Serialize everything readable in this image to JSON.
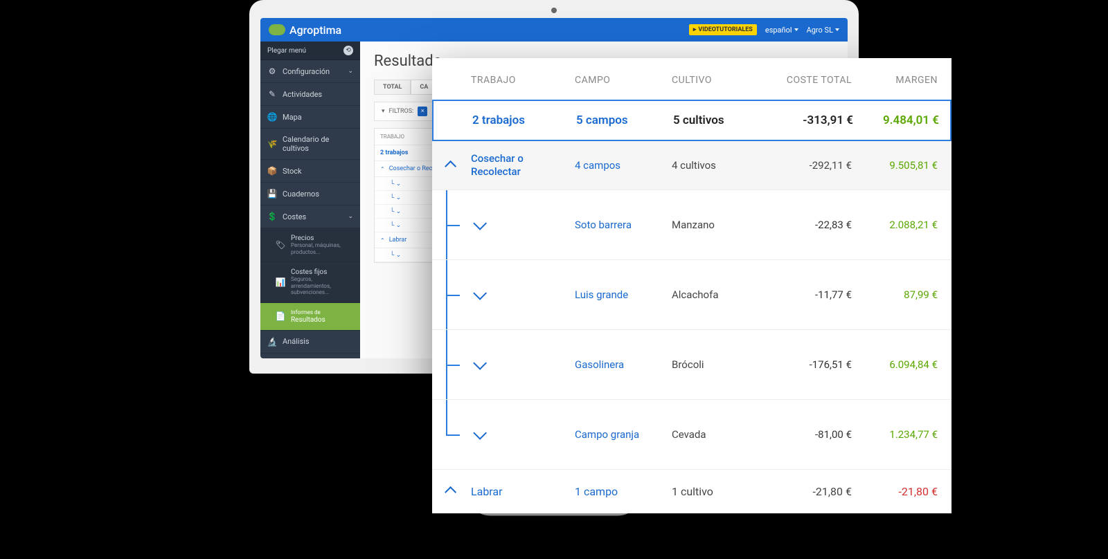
{
  "colors": {
    "brand_blue": "#1a6ad0",
    "sidebar_bg": "#2f3a4a",
    "accent_green": "#7cb342",
    "positive": "#5aa700",
    "negative": "#d32f2f",
    "video_btn": "#ffd600"
  },
  "header": {
    "brand": "Agroptima",
    "video_btn": "VIDEOTUTORIALES",
    "lang": "español",
    "account": "Agro SL"
  },
  "sidebar": {
    "fold": "Plegar menú",
    "items": [
      {
        "icon": "⚙",
        "label": "Configuración",
        "chev": true
      },
      {
        "icon": "✎",
        "label": "Actividades"
      },
      {
        "icon": "🌐",
        "label": "Mapa"
      },
      {
        "icon": "🌾",
        "label": "Calendario de cultivos"
      },
      {
        "icon": "📦",
        "label": "Stock"
      },
      {
        "icon": "💾",
        "label": "Cuadernos"
      },
      {
        "icon": "💲",
        "label": "Costes",
        "chev": true
      }
    ],
    "cost_children": [
      {
        "icon": "🏷",
        "label": "Precios",
        "sub": "Personal, máquinas, productos..."
      },
      {
        "icon": "📊",
        "label": "Costes fijos",
        "sub": "Seguros, arrendamientos, subvenciones..."
      },
      {
        "icon": "📄",
        "pre": "Informes de",
        "label": "Resultados",
        "active": true
      }
    ],
    "analysis": {
      "icon": "🔬",
      "label": "Análisis"
    }
  },
  "main": {
    "title": "Resultado",
    "tabs": [
      "TOTAL",
      "CA"
    ],
    "filters_label": "FILTROS:",
    "mini": {
      "th": "TRABAJO",
      "total": "2 trabajos",
      "row1": "Cosechar o Recol",
      "row2": "Labrar"
    }
  },
  "overlay": {
    "columns": [
      "TRABAJO",
      "CAMPO",
      "CULTIVO",
      "COSTE TOTAL",
      "MARGEN"
    ],
    "total": {
      "trabajo": "2 trabajos",
      "campo": "5 campos",
      "cultivo": "5 cultivos",
      "coste": "-313,91 €",
      "margen": "9.484,01 €"
    },
    "group1": {
      "title": "Cosechar o Recolectar",
      "campo": "4 campos",
      "cultivo": "4 cultivos",
      "coste": "-292,11 €",
      "margen": "9.505,81 €",
      "rows": [
        {
          "campo": "Soto barrera",
          "cultivo": "Manzano",
          "coste": "-22,83 €",
          "margen": "2.088,21 €",
          "margen_class": "mg-green"
        },
        {
          "campo": "Luis grande",
          "cultivo": "Alcachofa",
          "coste": "-11,77 €",
          "margen": "87,99 €",
          "margen_class": "mg-green"
        },
        {
          "campo": "Gasolinera",
          "cultivo": "Brócoli",
          "coste": "-176,51 €",
          "margen": "6.094,84 €",
          "margen_class": "mg-green"
        },
        {
          "campo": "Campo granja",
          "cultivo": "Cevada",
          "coste": "-81,00 €",
          "margen": "1.234,77 €",
          "margen_class": "mg-green"
        }
      ]
    },
    "group2": {
      "title": "Labrar",
      "campo": "1 campo",
      "cultivo": "1 cultivo",
      "coste": "-21,80 €",
      "margen": "-21,80 €",
      "margen_class": "mg-red"
    }
  }
}
